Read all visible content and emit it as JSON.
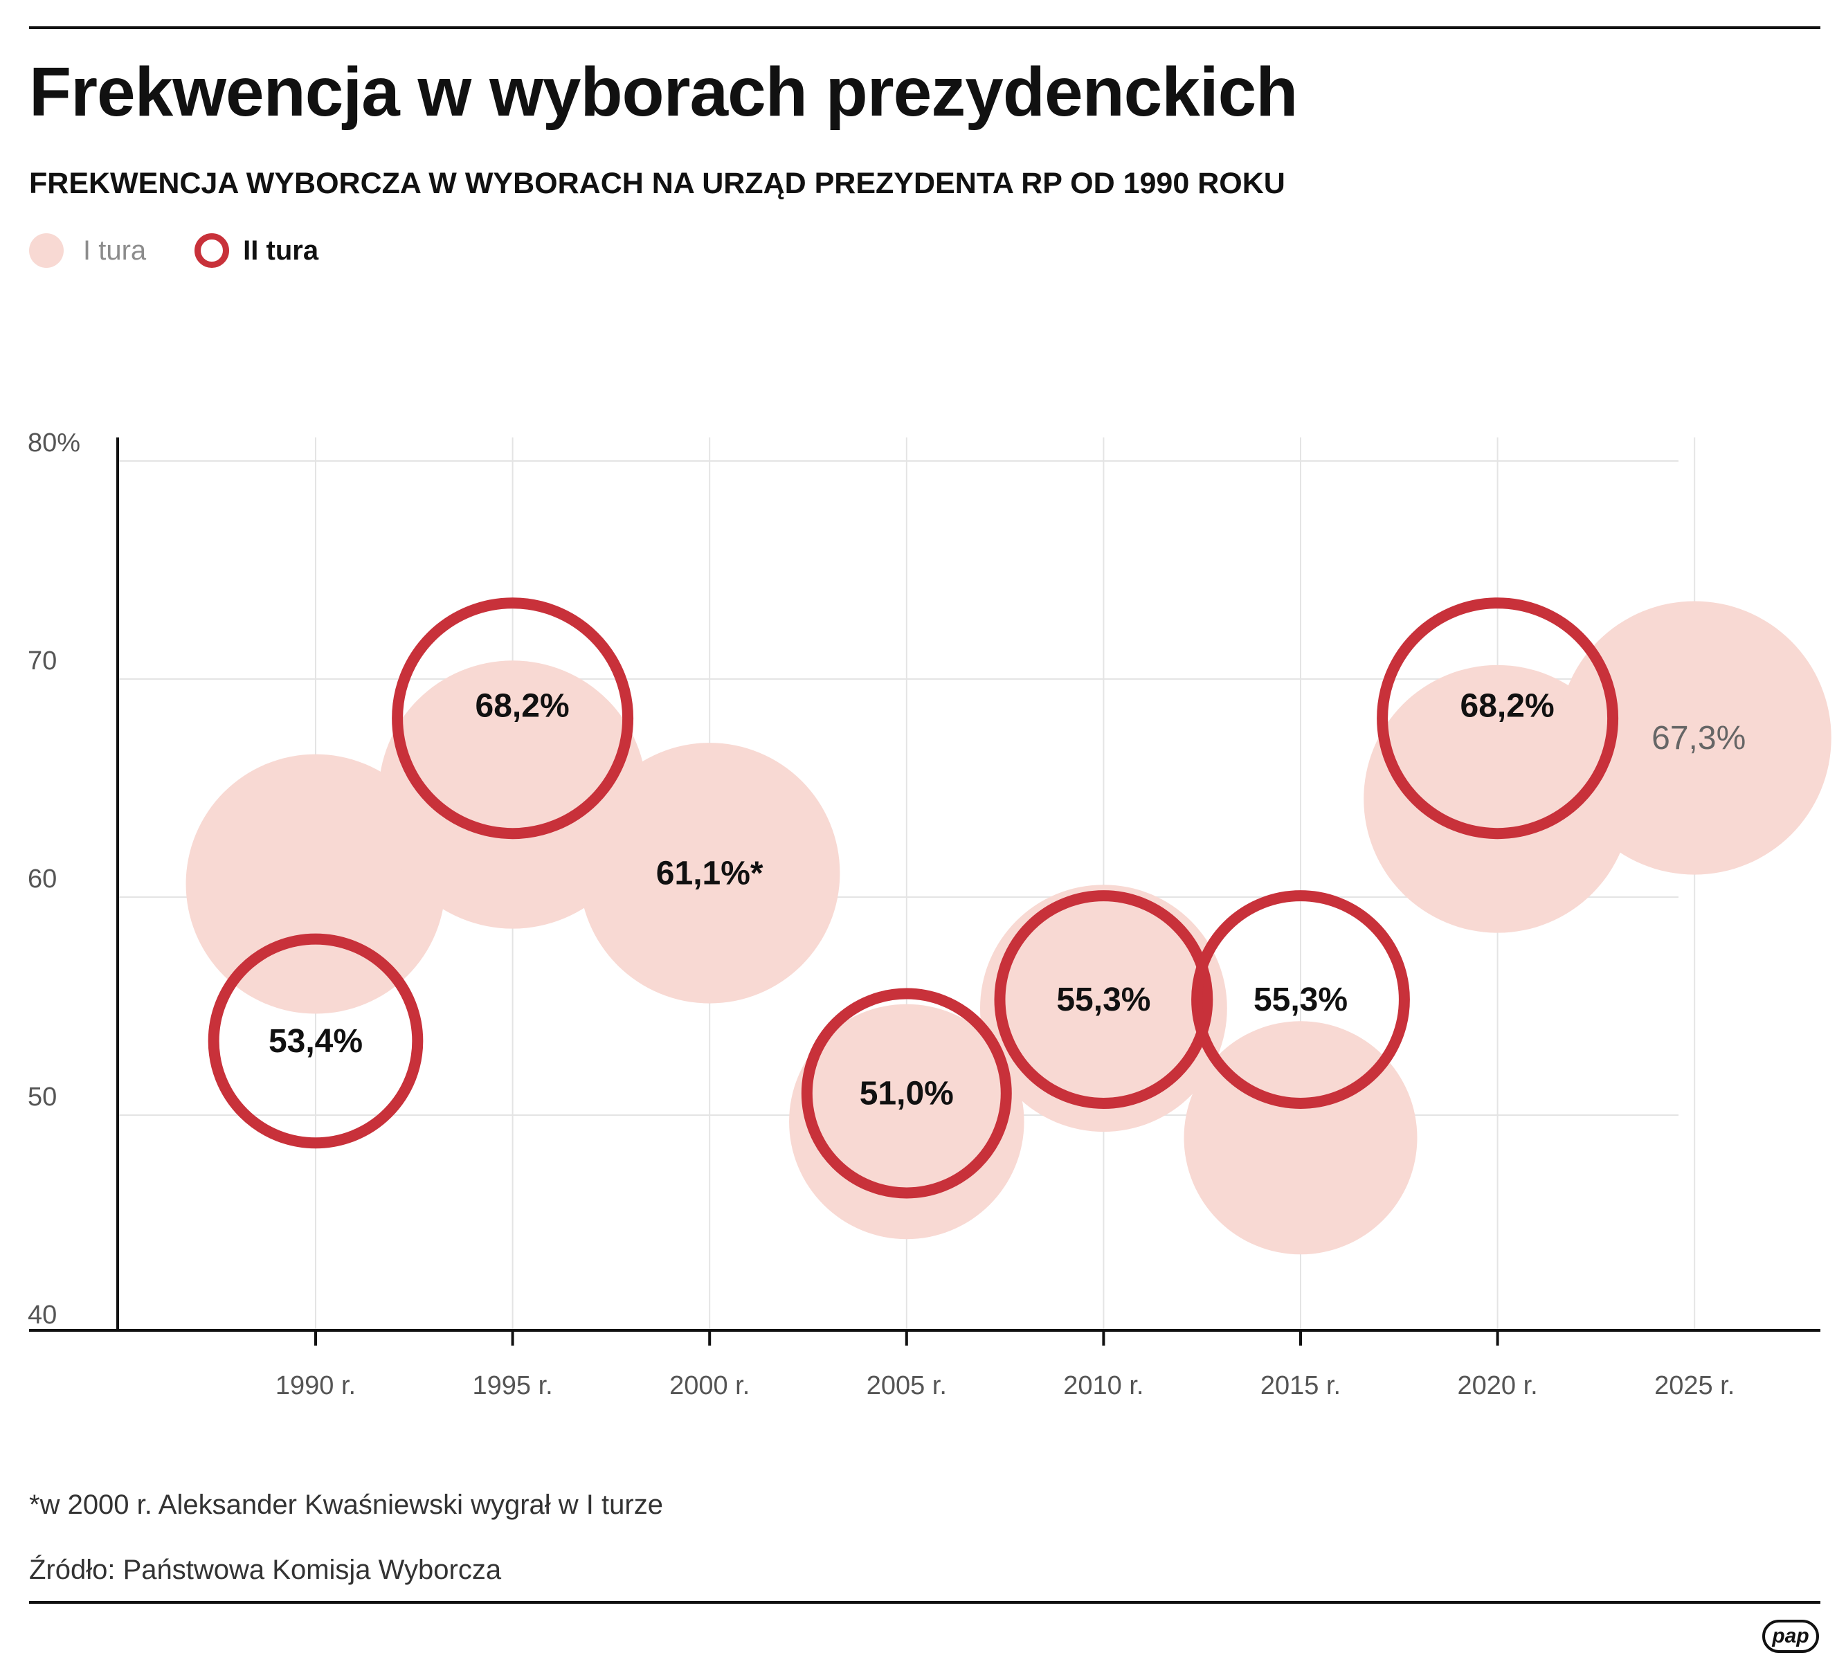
{
  "header": {
    "title": "Frekwencja w wyborach prezydenckich",
    "subtitle": "FREKWENCJA WYBORCZA W WYBORACH NA URZĄD PREZYDENTA RP OD 1990 ROKU"
  },
  "legend": {
    "round1_label": "I tura",
    "round2_label": "II tura"
  },
  "colors": {
    "round1_fill": "#f8d9d3",
    "round2_ring": "#c8313a",
    "grid": "#e4e4e4",
    "axis": "#111111"
  },
  "chart_data": {
    "type": "scatter",
    "x_categories": [
      "1990 r.",
      "1995 r.",
      "2000 r.",
      "2005 r.",
      "2010 r.",
      "2015 r.",
      "2020 r.",
      "2025 r."
    ],
    "y_ticks": [
      "40",
      "50",
      "60",
      "70",
      "80%"
    ],
    "ylim": [
      40,
      80
    ],
    "grid": true,
    "series": [
      {
        "name": "I tura",
        "points": [
          {
            "x": "1990 r.",
            "y": 60.6,
            "label": ""
          },
          {
            "x": "1995 r.",
            "y": 64.7,
            "label": ""
          },
          {
            "x": "2000 r.",
            "y": 61.1,
            "label": "61,1%*"
          },
          {
            "x": "2005 r.",
            "y": 49.7,
            "label": ""
          },
          {
            "x": "2010 r.",
            "y": 54.9,
            "label": ""
          },
          {
            "x": "2015 r.",
            "y": 48.96,
            "label": ""
          },
          {
            "x": "2020 r.",
            "y": 64.5,
            "label": ""
          },
          {
            "x": "2025 r.",
            "y": 67.3,
            "label": "67,3%"
          }
        ]
      },
      {
        "name": "II tura",
        "points": [
          {
            "x": "1990 r.",
            "y": 53.4,
            "label": "53,4%"
          },
          {
            "x": "1995 r.",
            "y": 68.2,
            "label": "68,2%"
          },
          {
            "x": "2005 r.",
            "y": 51.0,
            "label": "51,0%"
          },
          {
            "x": "2010 r.",
            "y": 55.3,
            "label": "55,3%"
          },
          {
            "x": "2015 r.",
            "y": 55.3,
            "label": "55,3%"
          },
          {
            "x": "2020 r.",
            "y": 68.2,
            "label": "68,2%"
          }
        ]
      }
    ]
  },
  "footer": {
    "footnote": "*w 2000 r. Aleksander Kwaśniewski wygrał w I turze",
    "source": "Źródło: Państwowa Komisja Wyborcza",
    "logo_text": "pap"
  }
}
